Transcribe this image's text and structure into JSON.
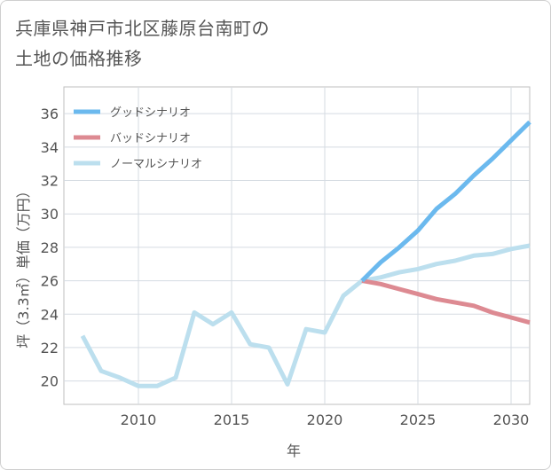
{
  "title_lines": [
    "兵庫県神戸市北区藤原台南町の",
    "土地の価格推移"
  ],
  "chart_data": {
    "type": "line",
    "title": "兵庫県神戸市北区藤原台南町の土地の価格推移",
    "xlabel": "年",
    "ylabel": "坪（3.3㎡）単価（万円）",
    "xlim": [
      2006,
      2031
    ],
    "ylim": [
      18.6,
      37.6
    ],
    "xticks": [
      2010,
      2015,
      2020,
      2025,
      2030
    ],
    "yticks": [
      20,
      22,
      24,
      26,
      28,
      30,
      32,
      34,
      36
    ],
    "grid": true,
    "legend_position": "top-left",
    "series": [
      {
        "name": "グッドシナリオ",
        "color": "#6bb9ee",
        "x": [
          2022,
          2023,
          2024,
          2025,
          2026,
          2027,
          2028,
          2029,
          2030,
          2031
        ],
        "values": [
          26.0,
          27.1,
          28.0,
          29.0,
          30.3,
          31.2,
          32.3,
          33.3,
          34.4,
          35.5
        ]
      },
      {
        "name": "バッドシナリオ",
        "color": "#dd8a92",
        "x": [
          2022,
          2023,
          2024,
          2025,
          2026,
          2027,
          2028,
          2029,
          2030,
          2031
        ],
        "values": [
          26.0,
          25.8,
          25.5,
          25.2,
          24.9,
          24.7,
          24.5,
          24.1,
          23.8,
          23.5
        ]
      },
      {
        "name": "ノーマルシナリオ",
        "color": "#bcdfee",
        "x": [
          2007,
          2008,
          2009,
          2010,
          2011,
          2012,
          2013,
          2014,
          2015,
          2016,
          2017,
          2018,
          2019,
          2020,
          2021,
          2022,
          2023,
          2024,
          2025,
          2026,
          2027,
          2028,
          2029,
          2030,
          2031
        ],
        "values": [
          22.7,
          20.6,
          20.2,
          19.7,
          19.7,
          20.2,
          24.1,
          23.4,
          24.1,
          22.2,
          22.0,
          19.8,
          23.1,
          22.9,
          25.1,
          26.0,
          26.2,
          26.5,
          26.7,
          27.0,
          27.2,
          27.5,
          27.6,
          27.9,
          28.1
        ]
      }
    ]
  }
}
